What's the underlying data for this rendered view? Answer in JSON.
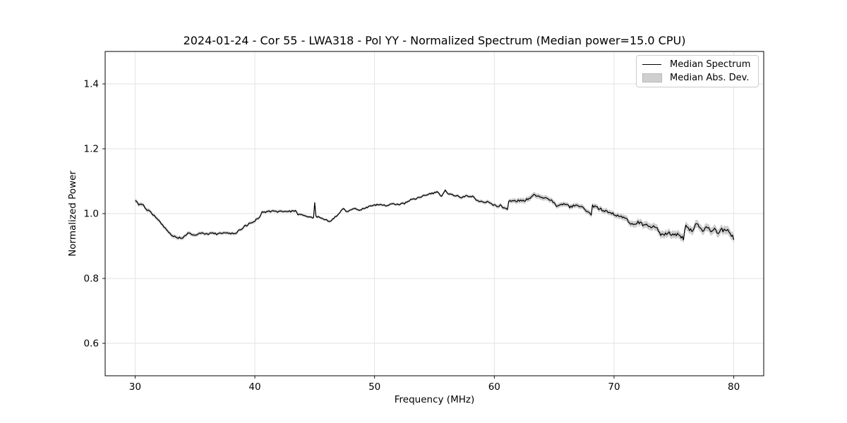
{
  "figure": {
    "title": "2024-01-24 - Cor 55 - LWA318 - Pol YY - Normalized Spectrum (Median power=15.0 CPU)",
    "xlabel": "Frequency (MHz)",
    "ylabel": "Normalized Power"
  },
  "legend": {
    "position": "upper right",
    "items": [
      {
        "label": "Median Spectrum",
        "swatch": "line",
        "color": "#000000"
      },
      {
        "label": "Median Abs. Dev.",
        "swatch": "patch",
        "color": "#cfcfcf"
      }
    ]
  },
  "colors": {
    "background": "#ffffff",
    "frame": "#000000",
    "grid": "#e2e2e2",
    "line": "#000000",
    "band": "#c8c8c8",
    "text": "#000000"
  },
  "chart_data": {
    "type": "line",
    "title": "2024-01-24 - Cor 55 - LWA318 - Pol YY - Normalized Spectrum (Median power=15.0 CPU)",
    "xlabel": "Frequency (MHz)",
    "ylabel": "Normalized Power",
    "xlim": [
      27.5,
      82.5
    ],
    "ylim": [
      0.5,
      1.5
    ],
    "xticks": [
      30,
      40,
      50,
      60,
      70,
      80
    ],
    "xtick_labels": [
      "30",
      "40",
      "50",
      "60",
      "70",
      "80"
    ],
    "yticks": [
      0.6,
      0.8,
      1.0,
      1.2,
      1.4
    ],
    "ytick_labels": [
      "0.6",
      "0.8",
      "1.0",
      "1.2",
      "1.4"
    ],
    "grid": true,
    "legend_position": "upper right",
    "series": [
      {
        "name": "Median Spectrum",
        "type": "line",
        "color": "#000000",
        "x": [
          30.0,
          30.3,
          30.6,
          31.0,
          31.5,
          32.0,
          32.5,
          33.0,
          33.4,
          33.8,
          34.1,
          34.5,
          34.8,
          35.2,
          35.6,
          36.0,
          36.4,
          36.8,
          37.2,
          37.6,
          38.0,
          38.4,
          38.8,
          39.2,
          39.6,
          40.0,
          40.4,
          40.6,
          41.0,
          41.5,
          42.0,
          42.5,
          43.0,
          43.4,
          43.6,
          44.0,
          44.5,
          44.9,
          45.0,
          45.1,
          45.5,
          46.0,
          46.3,
          46.6,
          47.0,
          47.4,
          47.6,
          48.0,
          48.4,
          48.7,
          49.0,
          49.5,
          50.0,
          50.5,
          51.0,
          51.5,
          52.0,
          52.5,
          53.0,
          53.5,
          54.0,
          54.6,
          55.3,
          55.6,
          55.9,
          56.2,
          56.5,
          57.0,
          57.2,
          57.6,
          58.2,
          58.6,
          59.0,
          59.5,
          60.0,
          60.3,
          60.5,
          60.9,
          61.1,
          61.2,
          61.5,
          62.0,
          62.5,
          63.0,
          63.4,
          63.7,
          64.1,
          64.5,
          64.9,
          65.2,
          65.5,
          66.0,
          66.3,
          66.7,
          67.1,
          67.5,
          68.0,
          68.1,
          68.2,
          68.6,
          69.0,
          69.4,
          70.0,
          70.5,
          71.0,
          71.5,
          72.0,
          72.5,
          73.0,
          73.5,
          74.0,
          74.5,
          75.0,
          75.5,
          75.8,
          76.0,
          76.3,
          76.6,
          76.9,
          77.2,
          77.5,
          77.8,
          78.1,
          78.4,
          78.7,
          79.0,
          79.3,
          79.6,
          80.0
        ],
        "y": [
          1.04,
          1.028,
          1.03,
          1.012,
          0.997,
          0.977,
          0.957,
          0.936,
          0.926,
          0.925,
          0.929,
          0.942,
          0.932,
          0.936,
          0.939,
          0.936,
          0.94,
          0.937,
          0.939,
          0.941,
          0.938,
          0.941,
          0.95,
          0.962,
          0.97,
          0.978,
          0.99,
          1.004,
          1.006,
          1.008,
          1.006,
          1.009,
          1.007,
          1.008,
          0.998,
          0.995,
          0.99,
          0.988,
          1.035,
          0.99,
          0.988,
          0.98,
          0.977,
          0.985,
          1.0,
          1.018,
          1.005,
          1.012,
          1.018,
          1.01,
          1.015,
          1.022,
          1.027,
          1.028,
          1.025,
          1.03,
          1.028,
          1.032,
          1.042,
          1.046,
          1.055,
          1.061,
          1.066,
          1.051,
          1.072,
          1.06,
          1.058,
          1.055,
          1.048,
          1.055,
          1.052,
          1.04,
          1.037,
          1.035,
          1.025,
          1.021,
          1.025,
          1.014,
          1.012,
          1.04,
          1.037,
          1.04,
          1.038,
          1.05,
          1.058,
          1.052,
          1.05,
          1.043,
          1.037,
          1.02,
          1.03,
          1.028,
          1.02,
          1.025,
          1.025,
          1.015,
          1.0,
          0.992,
          1.024,
          1.018,
          1.012,
          1.008,
          0.998,
          0.99,
          0.985,
          0.968,
          0.975,
          0.965,
          0.962,
          0.957,
          0.933,
          0.94,
          0.937,
          0.932,
          0.924,
          0.962,
          0.95,
          0.945,
          0.975,
          0.952,
          0.948,
          0.96,
          0.945,
          0.952,
          0.943,
          0.952,
          0.945,
          0.947,
          0.924
        ]
      },
      {
        "name": "Median Abs. Dev.",
        "type": "band_around_line",
        "color": "#c8c8c8",
        "x": [
          30,
          33,
          36,
          40,
          45,
          50,
          55,
          58,
          61,
          62,
          64,
          66,
          68,
          70,
          72,
          74,
          76,
          78,
          80
        ],
        "half_width": [
          0.006,
          0.006,
          0.005,
          0.005,
          0.004,
          0.004,
          0.004,
          0.005,
          0.006,
          0.008,
          0.008,
          0.007,
          0.008,
          0.008,
          0.01,
          0.011,
          0.012,
          0.012,
          0.013
        ]
      }
    ]
  }
}
